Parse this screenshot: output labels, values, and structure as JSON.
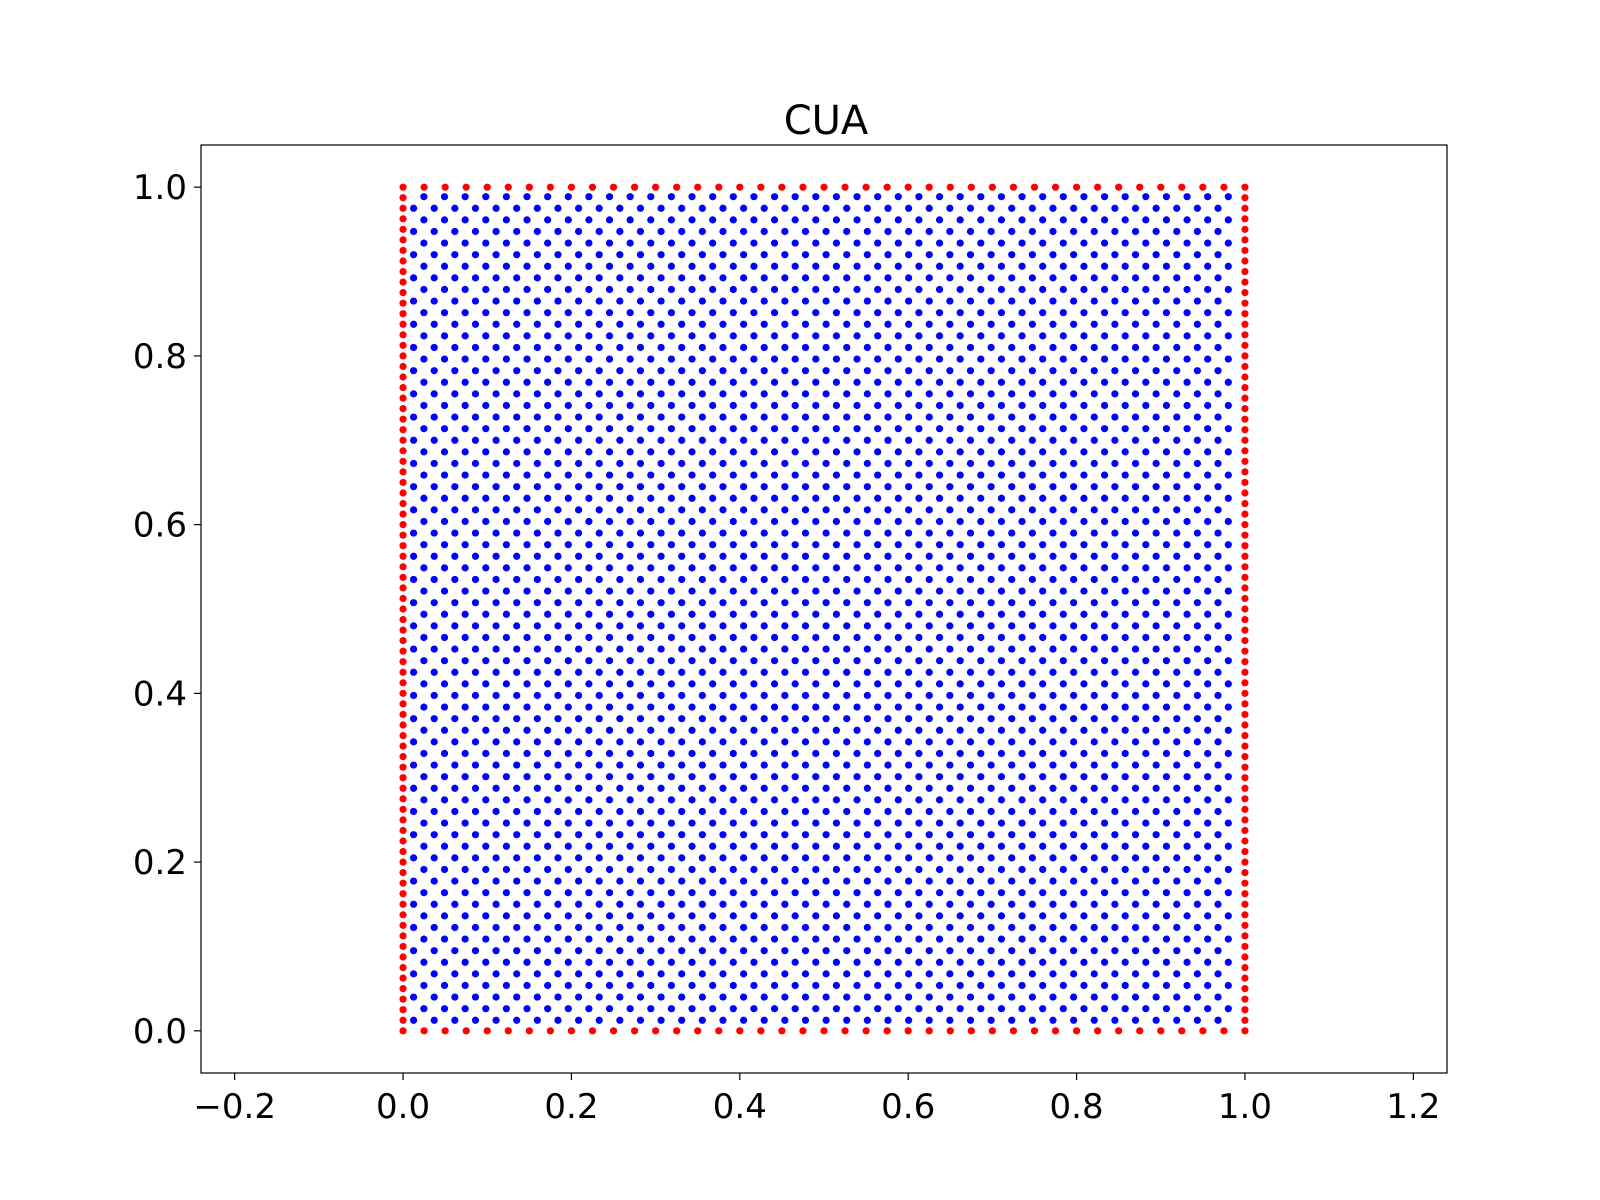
{
  "chart_data": {
    "type": "scatter",
    "title": "CUA",
    "xlabel": "",
    "ylabel": "",
    "xlim": [
      -0.24,
      1.24
    ],
    "ylim": [
      -0.05,
      1.05
    ],
    "x_ticks": [
      "−0.2",
      "0.0",
      "0.2",
      "0.4",
      "0.6",
      "0.8",
      "1.0",
      "1.2"
    ],
    "x_tick_values": [
      -0.2,
      0.0,
      0.2,
      0.4,
      0.6,
      0.8,
      1.0,
      1.2
    ],
    "y_ticks": [
      "0.0",
      "0.2",
      "0.4",
      "0.6",
      "0.8",
      "1.0"
    ],
    "y_tick_values": [
      0.0,
      0.2,
      0.4,
      0.6,
      0.8,
      1.0
    ],
    "grid": false,
    "legend": "none",
    "series": [
      {
        "color": "#ff0000",
        "description_of_points": "boundary points on the unit square",
        "top_bottom_x_spacing": 0.025,
        "left_right_y_spacing": 0.0125,
        "x_min": 0.0,
        "x_max": 1.0,
        "y_min": 0.0,
        "y_max": 1.0
      },
      {
        "color": "#0000ff",
        "description_of_points": "interior staggered lattice points",
        "row_spacing_y": 0.01375,
        "column_spacing_x": 0.0245,
        "x_min": 0.0125,
        "x_max": 0.9875,
        "y_min": 0.0125,
        "y_max": 0.99
      }
    ]
  }
}
